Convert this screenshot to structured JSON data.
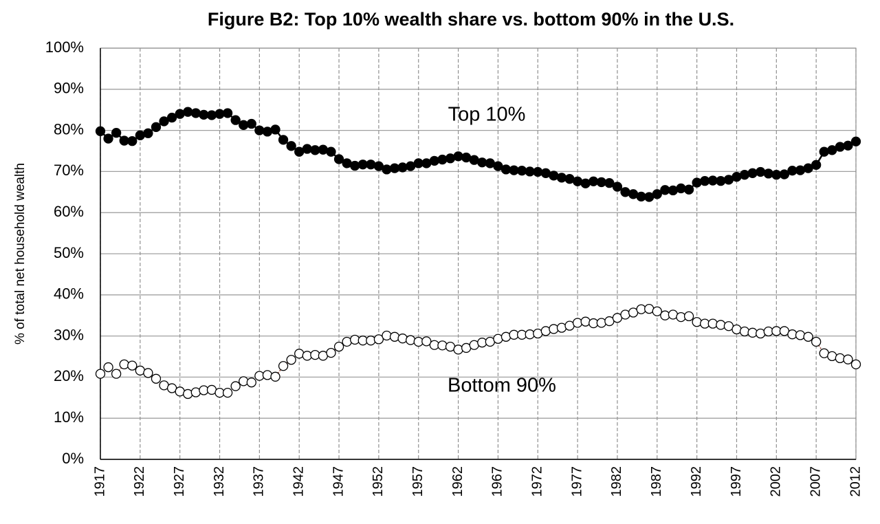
{
  "chart_data": {
    "type": "line",
    "title": "Figure B2: Top 10% wealth share vs. bottom 90% in the U.S.",
    "y_label": "% of total net household wealth",
    "x": [
      1917,
      1918,
      1919,
      1920,
      1921,
      1922,
      1923,
      1924,
      1925,
      1926,
      1927,
      1928,
      1929,
      1930,
      1931,
      1932,
      1933,
      1934,
      1935,
      1936,
      1937,
      1938,
      1939,
      1940,
      1941,
      1942,
      1943,
      1944,
      1945,
      1946,
      1947,
      1948,
      1949,
      1950,
      1951,
      1952,
      1953,
      1954,
      1955,
      1956,
      1957,
      1958,
      1959,
      1960,
      1961,
      1962,
      1963,
      1964,
      1965,
      1966,
      1967,
      1968,
      1969,
      1970,
      1971,
      1972,
      1973,
      1974,
      1975,
      1976,
      1977,
      1978,
      1979,
      1980,
      1981,
      1982,
      1983,
      1984,
      1985,
      1986,
      1987,
      1988,
      1989,
      1990,
      1991,
      1992,
      1993,
      1994,
      1995,
      1996,
      1997,
      1998,
      1999,
      2000,
      2001,
      2002,
      2003,
      2004,
      2005,
      2006,
      2007,
      2008,
      2009,
      2010,
      2011,
      2012
    ],
    "series": [
      {
        "name": "Top 10%",
        "color": "#000000",
        "marker_fill": "#000000",
        "line_style": "solid",
        "values": [
          79.8,
          78,
          79.4,
          77.5,
          77.4,
          78.8,
          79.3,
          80.8,
          82.2,
          83.1,
          84,
          84.5,
          84.2,
          83.8,
          83.7,
          84,
          84.2,
          82.5,
          81.3,
          81.6,
          80,
          79.7,
          80.2,
          77.7,
          76.2,
          74.8,
          75.5,
          75.2,
          75.3,
          74.8,
          73,
          72,
          71.4,
          71.7,
          71.7,
          71.3,
          70.5,
          70.8,
          71,
          71.3,
          72,
          72,
          72.6,
          72.9,
          73.2,
          73.7,
          73.4,
          72.8,
          72.2,
          72,
          71.3,
          70.5,
          70.3,
          70.2,
          70,
          69.9,
          69.6,
          69,
          68.5,
          68.2,
          67.6,
          67.1,
          67.6,
          67.4,
          67.2,
          66.3,
          65,
          64.5,
          63.9,
          63.8,
          64.5,
          65.5,
          65.4,
          65.9,
          65.6,
          67.3,
          67.7,
          67.8,
          67.7,
          68,
          68.7,
          69.2,
          69.6,
          69.9,
          69.5,
          69.2,
          69.3,
          70.2,
          70.3,
          70.8,
          71.6,
          74.8,
          75.2,
          76,
          76.3,
          77.3
        ]
      },
      {
        "name": "Bottom 90%",
        "color": "#8b3a2a",
        "marker_fill": "#ffffff",
        "line_style": "dotted",
        "values": [
          20.8,
          22.4,
          20.8,
          23.1,
          22.8,
          21.6,
          21,
          19.6,
          18,
          17.3,
          16.5,
          15.9,
          16.3,
          16.8,
          16.9,
          16.2,
          16.2,
          17.8,
          19,
          18.7,
          20.3,
          20.5,
          20.1,
          22.7,
          24.2,
          25.7,
          25.2,
          25.4,
          25.2,
          25.9,
          27.4,
          28.6,
          29.1,
          28.9,
          28.9,
          29.2,
          30.1,
          29.8,
          29.4,
          29,
          28.6,
          28.7,
          27.8,
          27.7,
          27.4,
          26.7,
          27.1,
          27.8,
          28.4,
          28.6,
          29.3,
          29.8,
          30.3,
          30.3,
          30.4,
          30.6,
          31.2,
          31.7,
          32,
          32.5,
          33.2,
          33.5,
          33.1,
          33.2,
          33.6,
          34.4,
          35.2,
          35.7,
          36.5,
          36.6,
          36,
          35,
          35.2,
          34.6,
          34.8,
          33.4,
          33,
          33,
          32.7,
          32.4,
          31.6,
          31.1,
          30.8,
          30.6,
          31.1,
          31.2,
          31.2,
          30.4,
          30.2,
          29.8,
          28.6,
          25.8,
          25.1,
          24.6,
          24.3,
          23.1
        ]
      }
    ],
    "xlim": [
      1917,
      2012
    ],
    "xticks": [
      1917,
      1922,
      1927,
      1932,
      1937,
      1942,
      1947,
      1952,
      1957,
      1962,
      1967,
      1972,
      1977,
      1982,
      1987,
      1992,
      1997,
      2002,
      2007,
      2012
    ],
    "ylim": [
      0,
      100
    ],
    "yticks": [
      {
        "value": 0,
        "label": "0%"
      },
      {
        "value": 10,
        "label": "10%"
      },
      {
        "value": 20,
        "label": "20%"
      },
      {
        "value": 30,
        "label": "30%"
      },
      {
        "value": 40,
        "label": "40%"
      },
      {
        "value": 50,
        "label": "50%"
      },
      {
        "value": 60,
        "label": "60%"
      },
      {
        "value": 70,
        "label": "70%"
      },
      {
        "value": 80,
        "label": "80%"
      },
      {
        "value": 90,
        "label": "90%"
      },
      {
        "value": 100,
        "label": "100%"
      }
    ],
    "grid": true
  }
}
